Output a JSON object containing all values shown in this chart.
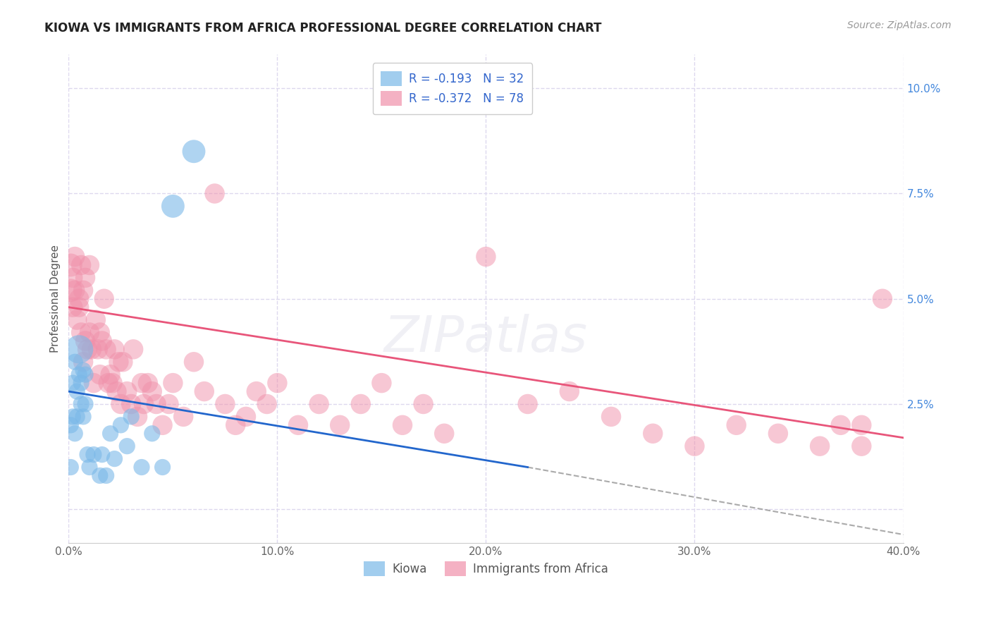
{
  "title": "KIOWA VS IMMIGRANTS FROM AFRICA PROFESSIONAL DEGREE CORRELATION CHART",
  "source": "Source: ZipAtlas.com",
  "ylabel": "Professional Degree",
  "ytick_values": [
    0.0,
    0.025,
    0.05,
    0.075,
    0.1
  ],
  "ytick_labels": [
    "",
    "2.5%",
    "5.0%",
    "7.5%",
    "10.0%"
  ],
  "xtick_values": [
    0.0,
    0.1,
    0.2,
    0.3,
    0.4
  ],
  "xtick_labels": [
    "0.0%",
    "10.0%",
    "20.0%",
    "30.0%",
    "40.0%"
  ],
  "kiowa_color": "#7ab8e8",
  "africa_color": "#f090aa",
  "regression_blue_color": "#2266cc",
  "regression_pink_color": "#e8557a",
  "regression_dash_color": "#aaaaaa",
  "background_color": "#ffffff",
  "grid_color": "#ddd8ee",
  "xlim": [
    0.0,
    0.4
  ],
  "ylim": [
    -0.008,
    0.108
  ],
  "kiowa_legend": "R = -0.193   N = 32",
  "africa_legend": "R = -0.372   N = 78",
  "legend_text_color": "#3366cc",
  "kiowa_bottom_label": "Kiowa",
  "africa_bottom_label": "Immigrants from Africa",
  "kiowa_x": [
    0.001,
    0.001,
    0.002,
    0.002,
    0.003,
    0.003,
    0.004,
    0.004,
    0.005,
    0.005,
    0.006,
    0.006,
    0.007,
    0.007,
    0.008,
    0.008,
    0.009,
    0.01,
    0.012,
    0.015,
    0.016,
    0.018,
    0.02,
    0.022,
    0.025,
    0.028,
    0.03,
    0.035,
    0.04,
    0.045,
    0.05,
    0.06
  ],
  "kiowa_y": [
    0.01,
    0.02,
    0.022,
    0.03,
    0.018,
    0.035,
    0.028,
    0.022,
    0.038,
    0.032,
    0.03,
    0.025,
    0.033,
    0.022,
    0.032,
    0.025,
    0.013,
    0.01,
    0.013,
    0.008,
    0.013,
    0.008,
    0.018,
    0.012,
    0.02,
    0.015,
    0.022,
    0.01,
    0.018,
    0.01,
    0.072,
    0.085
  ],
  "kiowa_sizes": [
    40,
    40,
    40,
    40,
    40,
    40,
    40,
    40,
    120,
    40,
    40,
    40,
    40,
    40,
    40,
    40,
    40,
    40,
    40,
    40,
    40,
    40,
    40,
    40,
    40,
    40,
    40,
    40,
    40,
    40,
    80,
    80
  ],
  "africa_x": [
    0.001,
    0.001,
    0.002,
    0.002,
    0.003,
    0.003,
    0.004,
    0.005,
    0.005,
    0.006,
    0.006,
    0.007,
    0.007,
    0.008,
    0.008,
    0.009,
    0.01,
    0.01,
    0.011,
    0.012,
    0.013,
    0.014,
    0.015,
    0.015,
    0.016,
    0.017,
    0.018,
    0.019,
    0.02,
    0.021,
    0.022,
    0.023,
    0.024,
    0.025,
    0.026,
    0.028,
    0.03,
    0.031,
    0.033,
    0.035,
    0.036,
    0.038,
    0.04,
    0.042,
    0.045,
    0.048,
    0.05,
    0.055,
    0.06,
    0.065,
    0.07,
    0.075,
    0.08,
    0.085,
    0.09,
    0.095,
    0.1,
    0.11,
    0.12,
    0.13,
    0.14,
    0.15,
    0.16,
    0.17,
    0.18,
    0.2,
    0.22,
    0.24,
    0.26,
    0.28,
    0.3,
    0.32,
    0.34,
    0.36,
    0.37,
    0.38,
    0.38,
    0.39
  ],
  "africa_y": [
    0.052,
    0.058,
    0.048,
    0.055,
    0.052,
    0.06,
    0.045,
    0.05,
    0.048,
    0.042,
    0.058,
    0.035,
    0.052,
    0.04,
    0.055,
    0.038,
    0.042,
    0.058,
    0.038,
    0.03,
    0.045,
    0.038,
    0.032,
    0.042,
    0.04,
    0.05,
    0.038,
    0.03,
    0.032,
    0.03,
    0.038,
    0.028,
    0.035,
    0.025,
    0.035,
    0.028,
    0.025,
    0.038,
    0.022,
    0.03,
    0.025,
    0.03,
    0.028,
    0.025,
    0.02,
    0.025,
    0.03,
    0.022,
    0.035,
    0.028,
    0.075,
    0.025,
    0.02,
    0.022,
    0.028,
    0.025,
    0.03,
    0.02,
    0.025,
    0.02,
    0.025,
    0.03,
    0.02,
    0.025,
    0.018,
    0.06,
    0.025,
    0.028,
    0.022,
    0.018,
    0.015,
    0.02,
    0.018,
    0.015,
    0.02,
    0.02,
    0.015,
    0.05
  ],
  "africa_sizes": [
    80,
    80,
    60,
    60,
    60,
    60,
    60,
    60,
    60,
    60,
    60,
    60,
    60,
    60,
    60,
    60,
    60,
    60,
    60,
    60,
    60,
    60,
    60,
    60,
    60,
    60,
    60,
    60,
    60,
    60,
    60,
    60,
    60,
    60,
    60,
    60,
    60,
    60,
    60,
    60,
    60,
    60,
    60,
    60,
    60,
    60,
    60,
    60,
    60,
    60,
    60,
    60,
    60,
    60,
    60,
    60,
    60,
    60,
    60,
    60,
    60,
    60,
    60,
    60,
    60,
    60,
    60,
    60,
    60,
    60,
    60,
    60,
    60,
    60,
    60,
    60,
    60,
    60
  ],
  "blue_line_x_start": 0.0,
  "blue_line_x_solid_end": 0.22,
  "blue_line_x_dash_end": 0.4,
  "blue_line_y_start": 0.028,
  "blue_line_y_solid_end": 0.01,
  "blue_line_y_dash_end": -0.006,
  "pink_line_x_start": 0.0,
  "pink_line_x_end": 0.4,
  "pink_line_y_start": 0.048,
  "pink_line_y_end": 0.017
}
